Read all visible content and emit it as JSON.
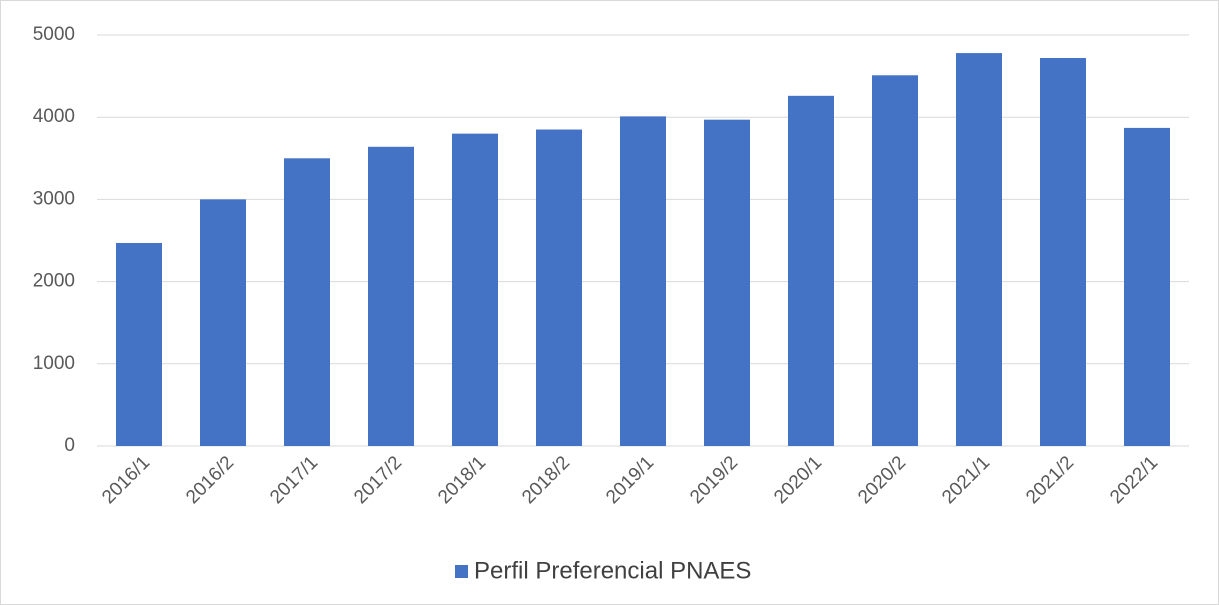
{
  "chart_data": {
    "type": "bar",
    "categories": [
      "2016/1",
      "2016/2",
      "2017/1",
      "2017/2",
      "2018/1",
      "2018/2",
      "2019/1",
      "2019/2",
      "2020/1",
      "2020/2",
      "2021/1",
      "2021/2",
      "2022/1"
    ],
    "series": [
      {
        "name": "Perfil Preferencial PNAES",
        "color": "#4472c4",
        "values": [
          2470,
          3000,
          3500,
          3640,
          3800,
          3850,
          4010,
          3970,
          4260,
          4510,
          4780,
          4720,
          3870
        ]
      }
    ],
    "ylim": [
      0,
      5000
    ],
    "yticks": [
      0,
      1000,
      2000,
      3000,
      4000,
      5000
    ],
    "grid": true,
    "legend": "bottom"
  }
}
